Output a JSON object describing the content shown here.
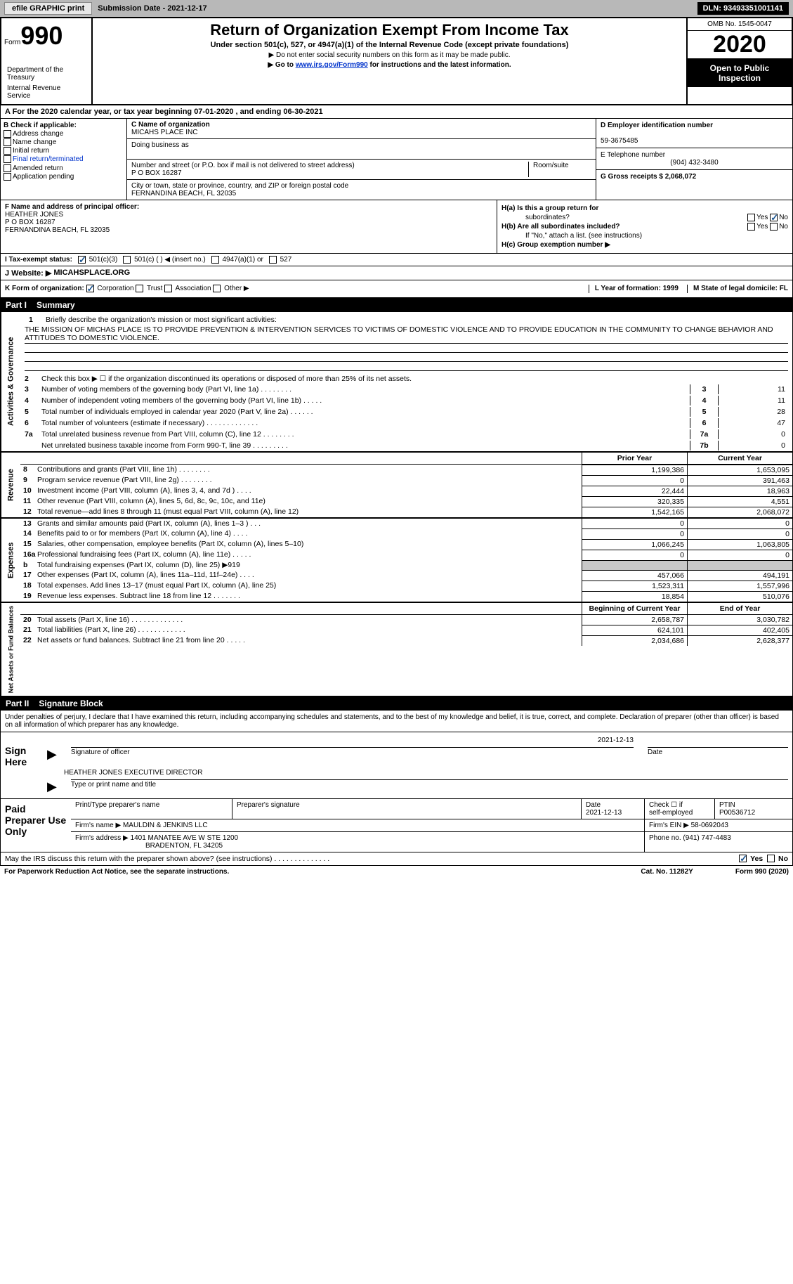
{
  "header_bar": {
    "efile_label": "efile GRAPHIC print",
    "submission_label": "Submission Date - 2021-12-17",
    "dln": "DLN: 93493351001141"
  },
  "form_header": {
    "form_word": "Form",
    "form_num": "990",
    "dept1": "Department of the Treasury",
    "dept2": "Internal Revenue Service",
    "title": "Return of Organization Exempt From Income Tax",
    "sub1": "Under section 501(c), 527, or 4947(a)(1) of the Internal Revenue Code (except private foundations)",
    "sub2": "▶ Do not enter social security numbers on this form as it may be made public.",
    "sub3_pre": "▶ Go to ",
    "sub3_link": "www.irs.gov/Form990",
    "sub3_post": " for instructions and the latest information.",
    "omb": "OMB No. 1545-0047",
    "year": "2020",
    "open_public": "Open to Public Inspection"
  },
  "row_a": "A For the 2020 calendar year, or tax year beginning 07-01-2020   , and ending 06-30-2021",
  "col_b": {
    "title": "B Check if applicable:",
    "items": [
      "Address change",
      "Name change",
      "Initial return",
      "Final return/terminated",
      "Amended return",
      "Application pending"
    ]
  },
  "col_c": {
    "name_label": "C Name of organization",
    "org_name": "MICAHS PLACE INC",
    "dba_label": "Doing business as",
    "addr_label": "Number and street (or P.O. box if mail is not delivered to street address)",
    "room_label": "Room/suite",
    "addr": "P O BOX 16287",
    "city_label": "City or town, state or province, country, and ZIP or foreign postal code",
    "city": "FERNANDINA BEACH, FL  32035"
  },
  "col_d": {
    "ein_label": "D Employer identification number",
    "ein": "59-3675485",
    "phone_label": "E Telephone number",
    "phone": "(904) 432-3480",
    "gross_label": "G Gross receipts $ 2,068,072"
  },
  "col_f": {
    "label": "F Name and address of principal officer:",
    "name": "HEATHER JONES",
    "addr1": "P O BOX 16287",
    "addr2": "FERNANDINA BEACH, FL  32035"
  },
  "col_h": {
    "ha_label": "H(a)  Is this a group return for",
    "ha_sub": "subordinates?",
    "hb_label": "H(b)  Are all subordinates included?",
    "hb_note": "If \"No,\" attach a list. (see instructions)",
    "hc_label": "H(c)  Group exemption number ▶",
    "yes": "Yes",
    "no": "No"
  },
  "row_i": {
    "label": "I   Tax-exempt status:",
    "opt1": "501(c)(3)",
    "opt2": "501(c) (  ) ◀ (insert no.)",
    "opt3": "4947(a)(1) or",
    "opt4": "527"
  },
  "row_j": {
    "label": "J   Website: ▶",
    "site": "MICAHSPLACE.ORG"
  },
  "row_k": {
    "label": "K Form of organization:",
    "opts": [
      "Corporation",
      "Trust",
      "Association",
      "Other ▶"
    ],
    "year_label": "L Year of formation: 1999",
    "state_label": "M State of legal domicile: FL"
  },
  "part1": {
    "num": "Part I",
    "title": "Summary"
  },
  "brief": {
    "num": "1",
    "label": "Briefly describe the organization's mission or most significant activities:",
    "mission": "THE MISSION OF MICHAS PLACE IS TO PROVIDE PREVENTION & INTERVENTION SERVICES TO VICTIMS OF DOMESTIC VIOLENCE AND TO PROVIDE EDUCATION IN THE COMMUNITY TO CHANGE BEHAVIOR AND ATTITUDES TO DOMESTIC VIOLENCE."
  },
  "gov_lines": [
    {
      "n": "2",
      "d": "Check this box ▶ ☐  if the organization discontinued its operations or disposed of more than 25% of its net assets."
    },
    {
      "n": "3",
      "d": "Number of voting members of the governing body (Part VI, line 1a)  .    .    .    .    .    .    .    .",
      "bn": "3",
      "bv": "11"
    },
    {
      "n": "4",
      "d": "Number of independent voting members of the governing body (Part VI, line 1b)  .    .    .    .    .",
      "bn": "4",
      "bv": "11"
    },
    {
      "n": "5",
      "d": "Total number of individuals employed in calendar year 2020 (Part V, line 2a)  .    .    .    .    .    .",
      "bn": "5",
      "bv": "28"
    },
    {
      "n": "6",
      "d": "Total number of volunteers (estimate if necessary)  .    .    .    .    .    .    .    .    .    .    .    .    .",
      "bn": "6",
      "bv": "47"
    },
    {
      "n": "7a",
      "d": "Total unrelated business revenue from Part VIII, column (C), line 12  .    .    .    .    .    .    .    .",
      "bn": "7a",
      "bv": "0"
    },
    {
      "n": "",
      "d": "Net unrelated business taxable income from Form 990-T, line 39  .    .    .    .    .    .    .    .    .",
      "bn": "7b",
      "bv": "0"
    }
  ],
  "side_labels": {
    "gov": "Activities & Governance",
    "rev": "Revenue",
    "exp": "Expenses",
    "net": "Net Assets or Fund Balances"
  },
  "rev_headers": {
    "py": "Prior Year",
    "cy": "Current Year"
  },
  "rev_lines": [
    {
      "n": "b",
      "d": "",
      "py": "",
      "cy": "",
      "hidden": true
    },
    {
      "n": "8",
      "d": "Contributions and grants (Part VIII, line 1h)  .    .    .    .    .    .    .    .",
      "py": "1,199,386",
      "cy": "1,653,095"
    },
    {
      "n": "9",
      "d": "Program service revenue (Part VIII, line 2g)  .    .    .    .    .    .    .    .",
      "py": "0",
      "cy": "391,463"
    },
    {
      "n": "10",
      "d": "Investment income (Part VIII, column (A), lines 3, 4, and 7d )  .    .    .    .",
      "py": "22,444",
      "cy": "18,963"
    },
    {
      "n": "11",
      "d": "Other revenue (Part VIII, column (A), lines 5, 6d, 8c, 9c, 10c, and 11e)",
      "py": "320,335",
      "cy": "4,551"
    },
    {
      "n": "12",
      "d": "Total revenue—add lines 8 through 11 (must equal Part VIII, column (A), line 12)",
      "py": "1,542,165",
      "cy": "2,068,072"
    }
  ],
  "exp_lines": [
    {
      "n": "13",
      "d": "Grants and similar amounts paid (Part IX, column (A), lines 1–3 )  .    .    .",
      "py": "0",
      "cy": "0"
    },
    {
      "n": "14",
      "d": "Benefits paid to or for members (Part IX, column (A), line 4)  .    .    .    .",
      "py": "0",
      "cy": "0"
    },
    {
      "n": "15",
      "d": "Salaries, other compensation, employee benefits (Part IX, column (A), lines 5–10)",
      "py": "1,066,245",
      "cy": "1,063,805"
    },
    {
      "n": "16a",
      "d": "Professional fundraising fees (Part IX, column (A), line 11e)  .    .    .    .    .",
      "py": "0",
      "cy": "0"
    },
    {
      "n": "b",
      "d": "Total fundraising expenses (Part IX, column (D), line 25) ▶919",
      "shaded": true
    },
    {
      "n": "17",
      "d": "Other expenses (Part IX, column (A), lines 11a–11d, 11f–24e)  .    .    .    .",
      "py": "457,066",
      "cy": "494,191"
    },
    {
      "n": "18",
      "d": "Total expenses. Add lines 13–17 (must equal Part IX, column (A), line 25)",
      "py": "1,523,311",
      "cy": "1,557,996"
    },
    {
      "n": "19",
      "d": "Revenue less expenses. Subtract line 18 from line 12  .    .    .    .    .    .    .",
      "py": "18,854",
      "cy": "510,076"
    }
  ],
  "net_headers": {
    "py": "Beginning of Current Year",
    "cy": "End of Year"
  },
  "net_lines": [
    {
      "n": "20",
      "d": "Total assets (Part X, line 16)  .    .    .    .    .    .    .    .    .    .    .    .    .",
      "py": "2,658,787",
      "cy": "3,030,782"
    },
    {
      "n": "21",
      "d": "Total liabilities (Part X, line 26)  .    .    .    .    .    .    .    .    .    .    .    .",
      "py": "624,101",
      "cy": "402,405"
    },
    {
      "n": "22",
      "d": "Net assets or fund balances. Subtract line 21 from line 20  .    .    .    .    .",
      "py": "2,034,686",
      "cy": "2,628,377"
    }
  ],
  "part2": {
    "num": "Part II",
    "title": "Signature Block"
  },
  "sig_intro": "Under penalties of perjury, I declare that I have examined this return, including accompanying schedules and statements, and to the best of my knowledge and belief, it is true, correct, and complete. Declaration of preparer (other than officer) is based on all information of which preparer has any knowledge.",
  "sign_here": "Sign Here",
  "sig_date": "2021-12-13",
  "sig_officer_label": "Signature of officer",
  "sig_date_label": "Date",
  "sig_name": "HEATHER JONES EXECUTIVE DIRECTOR",
  "sig_name_label": "Type or print name and title",
  "paid_prep": "Paid Preparer Use Only",
  "prep": {
    "h1": "Print/Type preparer's name",
    "h2": "Preparer's signature",
    "h3": "Date",
    "date": "2021-12-13",
    "h4_1": "Check ☐  if",
    "h4_2": "self-employed",
    "h5": "PTIN",
    "ptin": "P00536712",
    "firm_label": "Firm's name    ▶",
    "firm_name": "MAULDIN & JENKINS LLC",
    "ein_label": "Firm's EIN ▶",
    "ein": "58-0692043",
    "addr_label": "Firm's address ▶",
    "addr1": "1401 MANATEE AVE W STE 1200",
    "addr2": "BRADENTON, FL  34205",
    "phone_label": "Phone no.",
    "phone": "(941) 747-4483"
  },
  "discuss": {
    "text": "May the IRS discuss this return with the preparer shown above? (see instructions)  .    .    .    .    .    .    .    .    .    .    .    .    .    .",
    "yes": "Yes",
    "no": "No"
  },
  "footer": {
    "left": "For Paperwork Reduction Act Notice, see the separate instructions.",
    "mid": "Cat. No. 11282Y",
    "right": "Form 990 (2020)"
  }
}
